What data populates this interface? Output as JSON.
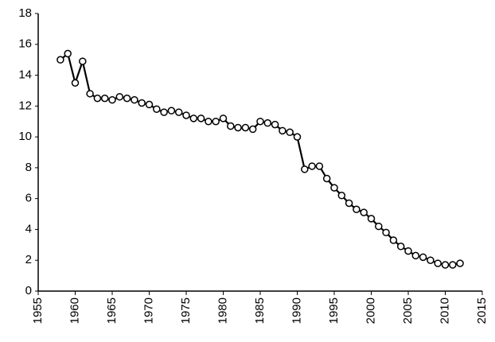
{
  "chart_data": {
    "type": "line",
    "x": [
      1958,
      1959,
      1960,
      1961,
      1962,
      1963,
      1964,
      1965,
      1966,
      1967,
      1968,
      1969,
      1970,
      1971,
      1972,
      1973,
      1974,
      1975,
      1976,
      1977,
      1978,
      1979,
      1980,
      1981,
      1982,
      1983,
      1984,
      1985,
      1986,
      1987,
      1988,
      1989,
      1990,
      1991,
      1992,
      1993,
      1994,
      1995,
      1996,
      1997,
      1998,
      1999,
      2000,
      2001,
      2002,
      2003,
      2004,
      2005,
      2006,
      2007,
      2008,
      2009,
      2010,
      2011,
      2012
    ],
    "series": [
      {
        "color": "#000000",
        "values": [
          15.0,
          15.4,
          13.5,
          14.9,
          12.8,
          12.5,
          12.5,
          12.4,
          12.6,
          12.5,
          12.4,
          12.2,
          12.1,
          11.8,
          11.6,
          11.7,
          11.6,
          11.4,
          11.2,
          11.2,
          11.0,
          11.0,
          11.2,
          10.7,
          10.6,
          10.6,
          10.5,
          11.0,
          10.9,
          10.8,
          10.4,
          10.3,
          10.0,
          7.9,
          8.1,
          8.1,
          7.3,
          6.7,
          6.2,
          5.7,
          5.3,
          5.1,
          4.7,
          4.2,
          3.8,
          3.3,
          2.9,
          2.6,
          2.3,
          2.2,
          2.0,
          1.8,
          1.7,
          1.7,
          1.8
        ]
      }
    ],
    "xlim": [
      1955,
      2015
    ],
    "xticks": [
      1955,
      1960,
      1965,
      1970,
      1975,
      1980,
      1985,
      1990,
      1995,
      2000,
      2005,
      2010,
      2015
    ],
    "ylim": [
      0,
      18
    ],
    "yticks": [
      0,
      2,
      4,
      6,
      8,
      10,
      12,
      14,
      16,
      18
    ],
    "grid": false
  }
}
